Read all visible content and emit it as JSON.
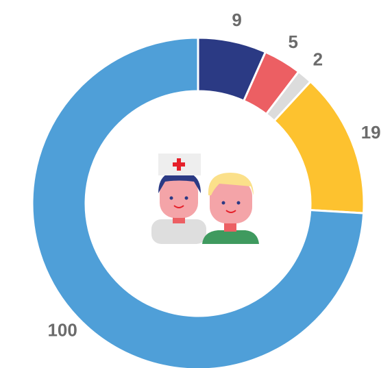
{
  "chart_data": {
    "type": "pie",
    "donut": true,
    "categories": [
      null,
      null,
      null,
      null,
      null
    ],
    "values": [
      9,
      5,
      2,
      19,
      100
    ],
    "colors": [
      "#2b3a84",
      "#ec5f63",
      "#dcdcdc",
      "#fdc22f",
      "#4f9fd8"
    ]
  }
}
